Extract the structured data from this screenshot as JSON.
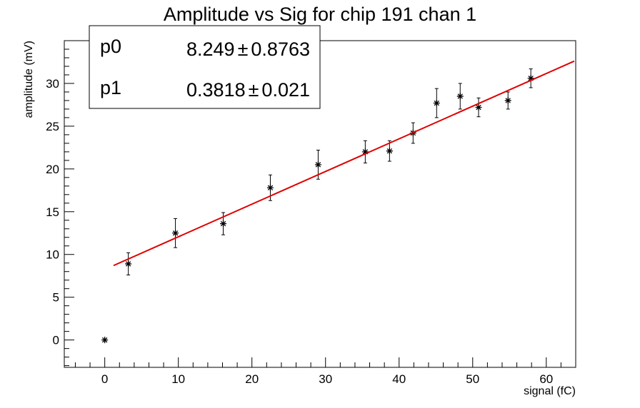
{
  "chart_data": {
    "type": "scatter",
    "title": "Amplitude vs Sig for chip 191 chan 1",
    "xlabel": "signal (fC)",
    "ylabel": "amplitude (mV)",
    "xlim": [
      -5.5,
      64
    ],
    "ylim": [
      -3.2,
      35
    ],
    "x_ticks": [
      0,
      10,
      20,
      30,
      40,
      50,
      60
    ],
    "y_ticks": [
      0,
      5,
      10,
      15,
      20,
      25,
      30
    ],
    "grid": false,
    "marker_color": "#000000",
    "fit_color": "#e00000",
    "series": [
      {
        "marker": "asterisk",
        "points": [
          {
            "x": 0.0,
            "y": 0.0,
            "err": 0.0
          },
          {
            "x": 3.2,
            "y": 8.9,
            "err": 1.3
          },
          {
            "x": 9.6,
            "y": 12.5,
            "err": 1.7
          },
          {
            "x": 16.1,
            "y": 13.6,
            "err": 1.3
          },
          {
            "x": 22.5,
            "y": 17.8,
            "err": 1.5
          },
          {
            "x": 29.0,
            "y": 20.5,
            "err": 1.7
          },
          {
            "x": 35.4,
            "y": 22.0,
            "err": 1.3
          },
          {
            "x": 38.7,
            "y": 22.1,
            "err": 1.2
          },
          {
            "x": 41.9,
            "y": 24.2,
            "err": 1.2
          },
          {
            "x": 45.1,
            "y": 27.7,
            "err": 1.7
          },
          {
            "x": 48.3,
            "y": 28.5,
            "err": 1.5
          },
          {
            "x": 50.8,
            "y": 27.2,
            "err": 1.1
          },
          {
            "x": 54.8,
            "y": 28.0,
            "err": 1.0
          },
          {
            "x": 57.9,
            "y": 30.6,
            "err": 1.1
          }
        ]
      }
    ],
    "fit": {
      "x_range": [
        1.2,
        63.8
      ],
      "p0": 8.249,
      "p1": 0.3818
    },
    "stats_box": {
      "placement": "top-left",
      "rows": [
        {
          "name": "p0",
          "value": "8.249",
          "pm": "±",
          "error": "0.8763"
        },
        {
          "name": "p1",
          "value": "0.3818",
          "pm": "±",
          "error": "0.021"
        }
      ]
    }
  }
}
